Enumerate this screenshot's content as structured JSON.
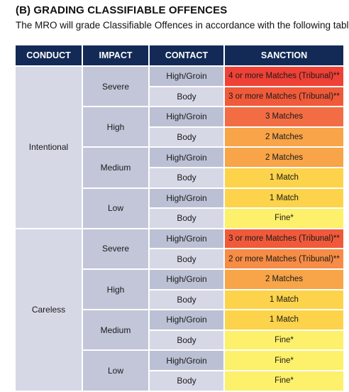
{
  "heading": "(B)  GRADING CLASSIFIABLE OFFENCES",
  "subheading": "The MRO will grade Classifiable Offences in accordance with the following table:",
  "table": {
    "headers": [
      "CONDUCT",
      "IMPACT",
      "CONTACT",
      "SANCTION"
    ],
    "groups": [
      {
        "conduct": "Intentional",
        "impacts": [
          {
            "impact": "Severe",
            "rows": [
              {
                "contact": "High/Groin",
                "sanction": "4 or more Matches (Tribunal)**",
                "color": "#ef4136"
              },
              {
                "contact": "Body",
                "sanction": "3 or more Matches (Tribunal)**",
                "color": "#f05a3a"
              }
            ]
          },
          {
            "impact": "High",
            "rows": [
              {
                "contact": "High/Groin",
                "sanction": "3 Matches",
                "color": "#f26d44"
              },
              {
                "contact": "Body",
                "sanction": "2 Matches",
                "color": "#f8a448"
              }
            ]
          },
          {
            "impact": "Medium",
            "rows": [
              {
                "contact": "High/Groin",
                "sanction": "2 Matches",
                "color": "#f8a448"
              },
              {
                "contact": "Body",
                "sanction": "1 Match",
                "color": "#fcd34a"
              }
            ]
          },
          {
            "impact": "Low",
            "rows": [
              {
                "contact": "High/Groin",
                "sanction": "1 Match",
                "color": "#fcd34a"
              },
              {
                "contact": "Body",
                "sanction": "Fine*",
                "color": "#fdf06a"
              }
            ]
          }
        ]
      },
      {
        "conduct": "Careless",
        "impacts": [
          {
            "impact": "Severe",
            "rows": [
              {
                "contact": "High/Groin",
                "sanction": "3 or more Matches (Tribunal)**",
                "color": "#f05a3a"
              },
              {
                "contact": "Body",
                "sanction": "2 or more Matches (Tribunal)**",
                "color": "#f68c45"
              }
            ]
          },
          {
            "impact": "High",
            "rows": [
              {
                "contact": "High/Groin",
                "sanction": "2 Matches",
                "color": "#f8a448"
              },
              {
                "contact": "Body",
                "sanction": "1 Match",
                "color": "#fcd34a"
              }
            ]
          },
          {
            "impact": "Medium",
            "rows": [
              {
                "contact": "High/Groin",
                "sanction": "1 Match",
                "color": "#fcd34a"
              },
              {
                "contact": "Body",
                "sanction": "Fine*",
                "color": "#fdf06a"
              }
            ]
          },
          {
            "impact": "Low",
            "rows": [
              {
                "contact": "High/Groin",
                "sanction": "Fine*",
                "color": "#fdf06a"
              },
              {
                "contact": "Body",
                "sanction": "Fine*",
                "color": "#fdf06a"
              }
            ]
          }
        ]
      }
    ]
  },
  "colors": {
    "header_bg": "#122a55",
    "conduct_bg": "#d6d8e6",
    "impact_bg": "#c3c6d9"
  }
}
